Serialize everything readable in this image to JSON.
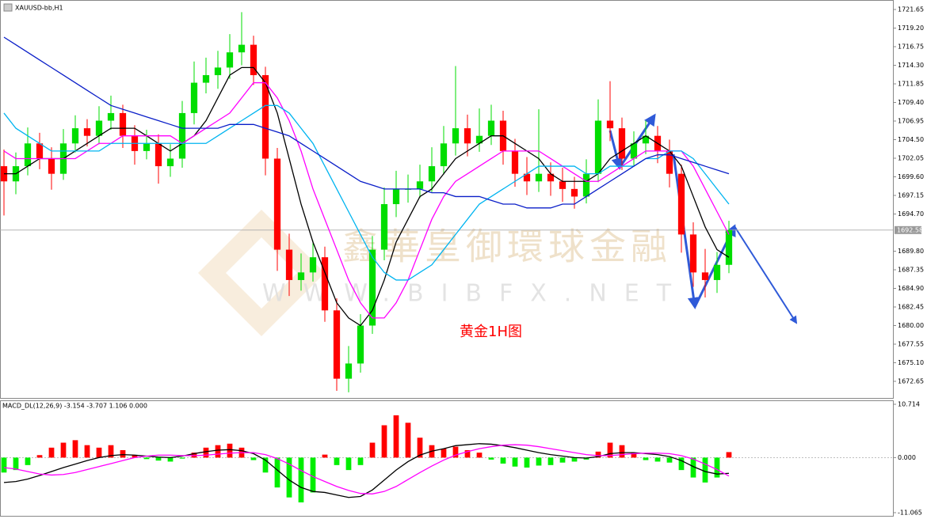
{
  "chart_data": [
    {
      "type": "candlestick",
      "title": "XAUUSD-bb,H1",
      "annotation": "黄金1H图",
      "watermark": "鑫華皇御環球金融",
      "watermark_url": "WWW.BIBFX.NET",
      "current_price": 1692.58,
      "up_color": "#00dd00",
      "down_color": "#ff0000",
      "ylim": [
        1670.46,
        1722.9
      ],
      "yticks": [
        1721.65,
        {
          "value": 1719.2,
          "label": "1719.20"
        },
        1716.75,
        {
          "value": 1714.3,
          "label": "1714.30"
        },
        1711.85,
        {
          "value": 1709.4,
          "label": "1709.40"
        },
        1706.95,
        {
          "value": 1704.5,
          "label": "1704.50"
        },
        1702.05,
        {
          "value": 1699.6,
          "label": "1699.60"
        },
        1697.15,
        {
          "value": 1694.7,
          "label": "1694.70"
        },
        {
          "value": 1689.8,
          "label": "1689.80"
        },
        1687.35,
        {
          "value": 1684.9,
          "label": "1684.90"
        },
        1682.45,
        {
          "value": 1680,
          "label": "1680.00"
        },
        1677.55,
        {
          "value": 1675.1,
          "label": "1675.10"
        },
        1672.65
      ],
      "open": [
        1701,
        1699,
        1701,
        1704,
        1702,
        1700,
        1704,
        1706,
        1705,
        1707,
        1708,
        1705,
        1703,
        1704,
        1701,
        1702,
        1708,
        1712,
        1713,
        1714,
        1716,
        1717,
        1713,
        1702,
        1690,
        1686,
        1687,
        1689,
        1682,
        1673,
        1675,
        1680,
        1690,
        1696,
        1698,
        1698,
        1699,
        1701,
        1704,
        1706,
        1704,
        1705,
        1707,
        1703,
        1700,
        1699,
        1700,
        1699,
        1698,
        1697,
        1700,
        1707,
        1706,
        1702,
        1704,
        1705,
        1703,
        1700,
        1692,
        1687,
        1686,
        1688
      ],
      "high": [
        1703.2,
        1702.8,
        1706.1,
        1705.4,
        1703.5,
        1705.9,
        1707.7,
        1707.2,
        1708.9,
        1710.3,
        1709.1,
        1706.4,
        1705.8,
        1705.2,
        1703.9,
        1709.6,
        1714.8,
        1715.3,
        1716.2,
        1718.4,
        1721.3,
        1718.2,
        1714.1,
        1703.4,
        1692.1,
        1689.5,
        1691.2,
        1690.4,
        1683.6,
        1677.3,
        1681.5,
        1691.8,
        1698.2,
        1700.4,
        1699.9,
        1701.2,
        1703.5,
        1706.3,
        1714.2,
        1707.8,
        1708.6,
        1709.1,
        1708.3,
        1704.6,
        1702.2,
        1708.5,
        1701.5,
        1700.8,
        1699.6,
        1701.9,
        1709.8,
        1712.2,
        1707.4,
        1705.6,
        1707.0,
        1706.3,
        1704.5,
        1701.2,
        1693.6,
        1690.1,
        1689.7,
        1693.8
      ],
      "low": [
        1694.5,
        1697.3,
        1699.8,
        1700.6,
        1697.9,
        1699.2,
        1702.8,
        1703.6,
        1703.9,
        1705.8,
        1703.4,
        1701.2,
        1701.9,
        1698.7,
        1699.6,
        1700.8,
        1706.5,
        1710.6,
        1711.2,
        1712.5,
        1714.3,
        1711.7,
        1699.8,
        1687.2,
        1683.9,
        1684.6,
        1685.8,
        1680.5,
        1671.4,
        1671.2,
        1673.8,
        1678.9,
        1688.6,
        1694.3,
        1696.2,
        1696.8,
        1697.6,
        1699.9,
        1702.4,
        1702.3,
        1702.9,
        1703.8,
        1701.2,
        1698.3,
        1697.2,
        1697.6,
        1697.1,
        1696.3,
        1695.4,
        1696.1,
        1698.9,
        1704.3,
        1700.5,
        1701.1,
        1702.6,
        1701.4,
        1698.2,
        1689.6,
        1685.1,
        1683.7,
        1684.3,
        1686.9
      ],
      "close": [
        1699,
        1701,
        1704,
        1702,
        1700,
        1704,
        1706,
        1705,
        1707,
        1708,
        1705,
        1703,
        1704,
        1701,
        1702,
        1708,
        1712,
        1713,
        1714,
        1716,
        1717,
        1713,
        1702,
        1690,
        1686,
        1687,
        1689,
        1682,
        1673,
        1675,
        1680,
        1690,
        1696,
        1698,
        1698,
        1699,
        1701,
        1704,
        1706,
        1704,
        1705,
        1707,
        1703,
        1700,
        1699,
        1700,
        1699,
        1698,
        1697,
        1700,
        1707,
        1706,
        1702,
        1704,
        1705,
        1703,
        1700,
        1692,
        1687,
        1686,
        1688,
        1692.58
      ],
      "series": [
        {
          "color": "#000000",
          "values": [
            1700,
            1700,
            1701,
            1702,
            1702,
            1702,
            1703,
            1704,
            1705,
            1706,
            1706,
            1706,
            1705,
            1704,
            1703,
            1704,
            1705,
            1707,
            1710,
            1713,
            1714,
            1714,
            1712,
            1708,
            1702,
            1696,
            1691,
            1687,
            1683,
            1681,
            1680,
            1682,
            1686,
            1691,
            1694,
            1697,
            1698,
            1700,
            1702,
            1703,
            1704,
            1705,
            1705,
            1704,
            1703,
            1702,
            1700,
            1699,
            1699,
            1699,
            1700,
            1702,
            1703,
            1704,
            1705,
            1704,
            1703,
            1701,
            1697,
            1693,
            1690,
            1689
          ]
        },
        {
          "color": "#ff00ff",
          "values": [
            1703,
            1702,
            1702,
            1702,
            1702,
            1702,
            1702,
            1703,
            1704,
            1704,
            1705,
            1705,
            1705,
            1705,
            1705,
            1704,
            1705,
            1706,
            1707,
            1708,
            1710,
            1712,
            1712,
            1710,
            1707,
            1703,
            1698,
            1694,
            1690,
            1686,
            1683,
            1681,
            1681,
            1683,
            1686,
            1690,
            1694,
            1697,
            1699,
            1700,
            1701,
            1702,
            1703,
            1703,
            1703,
            1703,
            1702,
            1701,
            1700,
            1699,
            1699,
            1700,
            1701,
            1702,
            1703,
            1703,
            1703,
            1703,
            1701,
            1698,
            1695,
            1692
          ]
        },
        {
          "color": "#00b4f0",
          "values": [
            1708,
            1706,
            1705,
            1704,
            1703,
            1703,
            1703,
            1703,
            1703,
            1704,
            1704,
            1704,
            1704,
            1704,
            1704,
            1704,
            1704,
            1704,
            1705,
            1706,
            1707,
            1708,
            1709,
            1709,
            1708,
            1706,
            1704,
            1701,
            1698,
            1695,
            1692,
            1689,
            1687,
            1686,
            1686,
            1687,
            1688,
            1690,
            1692,
            1694,
            1696,
            1697,
            1698,
            1699,
            1700,
            1701,
            1701,
            1701,
            1701,
            1700,
            1700,
            1701,
            1701,
            1701,
            1702,
            1702,
            1703,
            1703,
            1702,
            1700,
            1698,
            1696
          ]
        },
        {
          "color": "#0a1ec8",
          "values": [
            1718,
            1717,
            1716,
            1715,
            1714,
            1713,
            1712,
            1711,
            1710,
            1709,
            1708.5,
            1708,
            1707.5,
            1707,
            1706.5,
            1706,
            1706,
            1706,
            1706,
            1706.5,
            1706.5,
            1706.5,
            1706,
            1705.5,
            1705,
            1704,
            1703,
            1702,
            1701,
            1700,
            1699,
            1698.5,
            1698,
            1698,
            1698,
            1698,
            1697.5,
            1697.5,
            1697,
            1697,
            1697,
            1696.5,
            1696,
            1696,
            1695.5,
            1695.5,
            1695.5,
            1696,
            1696,
            1697,
            1698,
            1699,
            1700,
            1701,
            1702,
            1702.5,
            1702.5,
            1702,
            1701.5,
            1701,
            1700.5,
            1700
          ]
        }
      ]
    },
    {
      "type": "macd",
      "title": "MACD_DL(12,26,9) -3.154 -3.707 1.106 0.000",
      "up_color": "#ff0000",
      "down_color": "#00ee00",
      "ylim": [
        -11.7,
        11.51
      ],
      "yticks": [
        10.714,
        {
          "value": 0,
          "label": "0.000"
        },
        -11.065
      ],
      "values": [
        -3,
        -2.5,
        -1.5,
        0.5,
        2,
        3,
        3.5,
        2.5,
        2,
        2.5,
        1.5,
        0.5,
        -0.3,
        -0.6,
        -0.8,
        -0.2,
        1,
        2,
        2.5,
        2.8,
        2,
        -0.5,
        -3,
        -6,
        -8,
        -9,
        -7,
        0.6,
        -1.5,
        -2.5,
        -1.5,
        3,
        6.5,
        8.5,
        7,
        4,
        2.5,
        1.8,
        2.2,
        1.5,
        1,
        -0.4,
        -1.2,
        -1.8,
        -2,
        -1.6,
        -1.5,
        -1,
        -0.8,
        -0.4,
        1.2,
        3,
        2.5,
        1,
        -0.5,
        -0.8,
        -1,
        -2.5,
        -4,
        -5,
        -4,
        1.106
      ],
      "series": [
        {
          "color": "#000000",
          "values": [
            -5,
            -4.8,
            -4.3,
            -3.6,
            -2.8,
            -2,
            -1.3,
            -0.6,
            0,
            0.4,
            0.6,
            0.5,
            0.3,
            0.1,
            0,
            0.3,
            0.8,
            1.2,
            1.5,
            1.6,
            1.4,
            0.8,
            -0.5,
            -2.5,
            -4.5,
            -6,
            -6.8,
            -7,
            -7.5,
            -8,
            -7.8,
            -6.5,
            -4.5,
            -2.5,
            -0.8,
            0.5,
            1.3,
            1.8,
            2.4,
            2.6,
            2.8,
            2.7,
            2.4,
            2,
            1.5,
            1,
            0.6,
            0.3,
            0,
            -0.1,
            0.2,
            0.8,
            1,
            1,
            0.8,
            0.6,
            0.2,
            -0.6,
            -1.8,
            -2.8,
            -3.3,
            -3.154
          ]
        },
        {
          "color": "#ff00ff",
          "values": [
            -2,
            -2.3,
            -2.8,
            -3.3,
            -3.5,
            -3.4,
            -3,
            -2.4,
            -1.8,
            -1.2,
            -0.6,
            0,
            0.3,
            0.5,
            0.5,
            0.4,
            0.4,
            0.5,
            0.7,
            0.9,
            1,
            1,
            0.6,
            -0.2,
            -1.3,
            -2.6,
            -3.8,
            -4.8,
            -5.8,
            -6.6,
            -7.2,
            -7.3,
            -6.8,
            -5.8,
            -4.4,
            -3,
            -1.7,
            -0.5,
            0.5,
            1.2,
            1.8,
            2.2,
            2.5,
            2.6,
            2.5,
            2.2,
            1.8,
            1.4,
            1,
            0.6,
            0.4,
            0.4,
            0.6,
            0.8,
            0.9,
            0.9,
            0.8,
            0.4,
            -0.3,
            -1.3,
            -2.4,
            -3.707
          ]
        }
      ]
    }
  ]
}
